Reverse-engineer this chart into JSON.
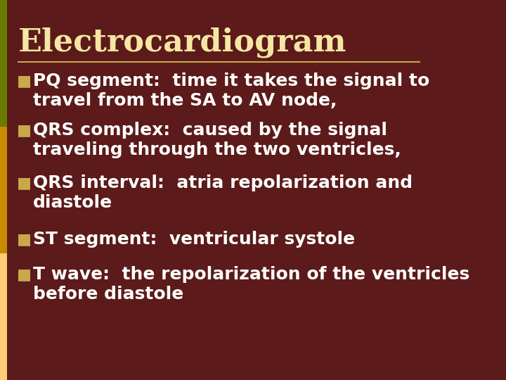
{
  "background_color": "#5C1A1A",
  "title": "Electrocardiogram",
  "title_color": "#F5E6A3",
  "title_fontsize": 32,
  "separator_color": "#C8A84B",
  "text_color": "#FFFFFF",
  "bullet_color": "#C8A84B",
  "left_bar_colors": [
    "#6B7A00",
    "#C98A00",
    "#FFCC77"
  ],
  "body_fontsize": 18,
  "bullet_points": [
    [
      "PQ segment:  time it takes the signal to",
      "travel from the SA to AV node,"
    ],
    [
      "QRS complex:  caused by the signal",
      "traveling through the two ventricles,"
    ],
    [
      "QRS interval:  atria repolarization and",
      "diastole"
    ],
    [
      "ST segment:  ventricular systole"
    ],
    [
      "T wave:  the repolarization of the ventricles",
      "before diastole"
    ]
  ]
}
